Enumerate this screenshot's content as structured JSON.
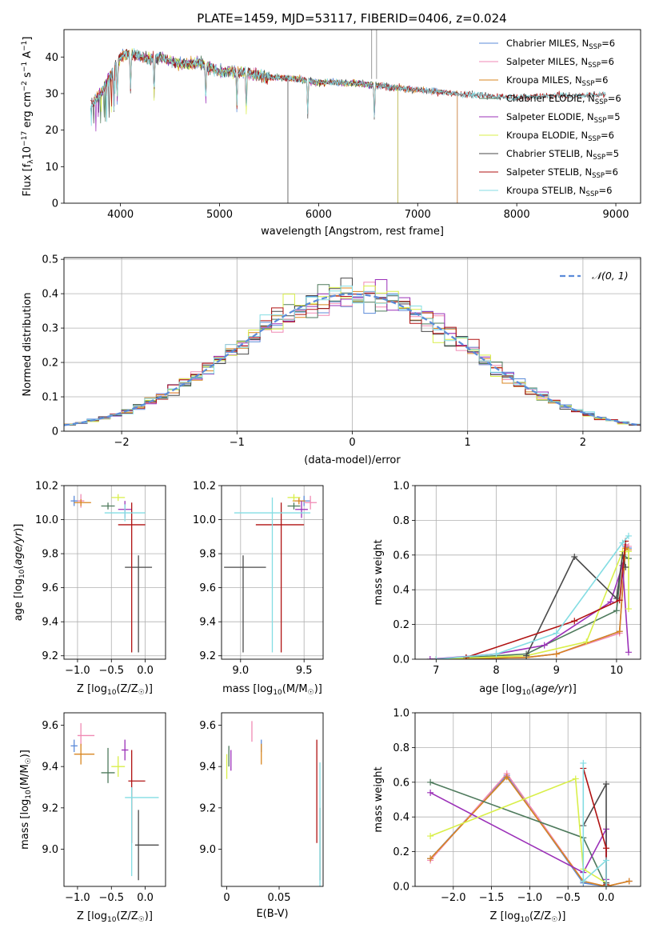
{
  "figure_title": "PLATE=1459, MJD=53117, FIBERID=0406, z=0.024",
  "colors": {
    "Chabrier MILES": "#5b8bd9",
    "Salpeter MILES": "#f08ab4",
    "Kroupa MILES": "#d8851f",
    "Chabrier ELODIE": "#4e7a5c",
    "Salpeter ELODIE": "#9b30b8",
    "Kroupa ELODIE": "#d9ef4a",
    "Chabrier STELIB": "#4a4a4a",
    "Salpeter STELIB": "#b01212",
    "Kroupa STELIB": "#84dde3"
  },
  "chart_data": [
    {
      "id": "spectrum",
      "type": "line",
      "title": "PLATE=1459, MJD=53117, FIBERID=0406, z=0.024",
      "xlabel": "wavelength [Angstrom, rest frame]",
      "ylabel_main": "Flux [f",
      "ylabel_sub": "λ",
      "ylabel_mid": "10",
      "ylabel_sup1": "−17",
      "ylabel_rest": " erg cm",
      "ylabel_sup2": "−2",
      "ylabel_rest2": " s",
      "ylabel_sup3": "−1",
      "ylabel_rest3": " A",
      "ylabel_sup4": "−1",
      "ylabel_end": "]",
      "xlim": [
        3430,
        9250
      ],
      "ylim": [
        0,
        47.5
      ],
      "xticks": [
        4000,
        5000,
        6000,
        7000,
        8000,
        9000
      ],
      "yticks": [
        0,
        10,
        20,
        30,
        40
      ],
      "legend_placement": "top-right",
      "series": [
        {
          "name": "Chabrier MILES",
          "nssp": "6"
        },
        {
          "name": "Salpeter MILES",
          "nssp": "6"
        },
        {
          "name": "Kroupa MILES",
          "nssp": "6"
        },
        {
          "name": "Chabrier ELODIE",
          "nssp": "6"
        },
        {
          "name": "Salpeter ELODIE",
          "nssp": "5"
        },
        {
          "name": "Kroupa ELODIE",
          "nssp": "6"
        },
        {
          "name": "Chabrier STELIB",
          "nssp": "5"
        },
        {
          "name": "Salpeter STELIB",
          "nssp": "6"
        },
        {
          "name": "Kroupa STELIB",
          "nssp": "6"
        }
      ],
      "continuum": {
        "x": [
          3700,
          3800,
          3900,
          4000,
          4100,
          4200,
          4300,
          4400,
          4600,
          4800,
          5000,
          5200,
          5500,
          5800,
          6000,
          6200,
          6500,
          6800,
          7000,
          7200,
          7400,
          7600,
          7800,
          8000,
          8200,
          8400,
          8600,
          8800
        ],
        "y": [
          27,
          30,
          35,
          40,
          41,
          40,
          39.5,
          40,
          38,
          38.5,
          36,
          36,
          34.5,
          34,
          33,
          33,
          32.5,
          31.5,
          31,
          30.5,
          30,
          29.5,
          29.2,
          29,
          29.2,
          29.5,
          29.3,
          29.8
        ]
      },
      "endpoints": {
        "MILES": 7400,
        "ELODIE": 6800,
        "STELIB": 8900
      }
    },
    {
      "id": "residuals",
      "type": "area",
      "xlabel": "(data-model)/error",
      "ylabel": "Normed distribution",
      "xlim": [
        -2.5,
        2.5
      ],
      "ylim": [
        0,
        0.505
      ],
      "xticks": [
        -2,
        -1,
        0,
        1,
        2
      ],
      "yticks": [
        0,
        0.1,
        0.2,
        0.3,
        0.4,
        0.5
      ],
      "grid": true,
      "legend_placement": "top-right",
      "legend_label": "𝒩(0, 1)",
      "bin_width": 0.1
    },
    {
      "id": "age-vs-Z",
      "type": "scatter",
      "xlabel": "Z [log",
      "xlabel_sub": "10",
      "xlabel_mid": "(Z/Z",
      "xlabel_sub2": "☉",
      "xlabel_end": ")]",
      "ylabel": "age  [log",
      "ylabel_sub": "10",
      "ylabel_end": "(age/yr)]",
      "xlim": [
        -1.2,
        0.3
      ],
      "ylim": [
        9.18,
        10.2
      ],
      "xticks": [
        -1.0,
        -0.5,
        0.0
      ],
      "yticks": [
        9.2,
        9.4,
        9.6,
        9.8,
        10.0,
        10.2
      ],
      "grid": true,
      "points": [
        {
          "series": "Chabrier MILES",
          "x": -1.05,
          "y": 10.11,
          "xerr": [
            0.05,
            0.05
          ],
          "yerr": [
            0.03,
            0.03
          ]
        },
        {
          "series": "Salpeter MILES",
          "x": -0.95,
          "y": 10.11,
          "xerr": [
            0.05,
            0.05
          ],
          "yerr": [
            0.04,
            0.04
          ]
        },
        {
          "series": "Kroupa MILES",
          "x": -0.95,
          "y": 10.1,
          "xerr": [
            0.1,
            0.15
          ],
          "yerr": [
            0.02,
            0.02
          ]
        },
        {
          "series": "Chabrier ELODIE",
          "x": -0.55,
          "y": 10.08,
          "xerr": [
            0.1,
            0.1
          ],
          "yerr": [
            0.02,
            0.02
          ]
        },
        {
          "series": "Salpeter ELODIE",
          "x": -0.3,
          "y": 10.06,
          "xerr": [
            0.1,
            0.1
          ],
          "yerr": [
            0.05,
            0.05
          ]
        },
        {
          "series": "Kroupa ELODIE",
          "x": -0.4,
          "y": 10.13,
          "xerr": [
            0.1,
            0.1
          ],
          "yerr": [
            0.02,
            0.02
          ]
        },
        {
          "series": "Chabrier STELIB",
          "x": -0.1,
          "y": 9.72,
          "xerr": [
            0.2,
            0.2
          ],
          "yerr": [
            0.5,
            0.07
          ]
        },
        {
          "series": "Salpeter STELIB",
          "x": -0.2,
          "y": 9.97,
          "xerr": [
            0.2,
            0.2
          ],
          "yerr": [
            0.75,
            0.13
          ]
        },
        {
          "series": "Kroupa STELIB",
          "x": -0.3,
          "y": 10.04,
          "xerr": [
            0.3,
            0.3
          ],
          "yerr": [
            0.05,
            0.05
          ]
        }
      ]
    },
    {
      "id": "age-vs-mass",
      "type": "scatter",
      "xlabel": "mass [log",
      "xlabel_sub": "10",
      "xlabel_mid": "(M/M",
      "xlabel_sub2": "☉",
      "xlabel_end": ")]",
      "xlim": [
        8.85,
        9.65
      ],
      "ylim": [
        9.18,
        10.2
      ],
      "xticks": [
        9.0,
        9.5
      ],
      "yticks": [
        9.2,
        9.4,
        9.6,
        9.8,
        10.0,
        10.2
      ],
      "grid": true,
      "points": [
        {
          "series": "Chabrier MILES",
          "x": 9.5,
          "y": 10.11,
          "xerr": [
            0.05,
            0.05
          ],
          "yerr": [
            0.03,
            0.03
          ]
        },
        {
          "series": "Salpeter MILES",
          "x": 9.55,
          "y": 10.1,
          "xerr": [
            0.05,
            0.05
          ],
          "yerr": [
            0.04,
            0.04
          ]
        },
        {
          "series": "Kroupa MILES",
          "x": 9.46,
          "y": 10.11,
          "xerr": [
            0.05,
            0.05
          ],
          "yerr": [
            0.02,
            0.02
          ]
        },
        {
          "series": "Chabrier ELODIE",
          "x": 9.42,
          "y": 10.08,
          "xerr": [
            0.05,
            0.05
          ],
          "yerr": [
            0.02,
            0.02
          ]
        },
        {
          "series": "Salpeter ELODIE",
          "x": 9.48,
          "y": 10.06,
          "xerr": [
            0.05,
            0.05
          ],
          "yerr": [
            0.05,
            0.05
          ]
        },
        {
          "series": "Kroupa ELODIE",
          "x": 9.42,
          "y": 10.13,
          "xerr": [
            0.05,
            0.05
          ],
          "yerr": [
            0.02,
            0.02
          ]
        },
        {
          "series": "Chabrier STELIB",
          "x": 9.02,
          "y": 9.72,
          "xerr": [
            0.15,
            0.18
          ],
          "yerr": [
            0.5,
            0.07
          ]
        },
        {
          "series": "Salpeter STELIB",
          "x": 9.32,
          "y": 9.97,
          "xerr": [
            0.2,
            0.18
          ],
          "yerr": [
            0.75,
            0.13
          ]
        },
        {
          "series": "Kroupa STELIB",
          "x": 9.25,
          "y": 10.04,
          "xerr": [
            0.3,
            0.3
          ],
          "yerr": [
            0.82,
            0.09
          ]
        }
      ]
    },
    {
      "id": "weight-vs-age",
      "type": "line",
      "xlabel": "age  [log",
      "xlabel_sub": "10",
      "xlabel_end": "(age/yr)]",
      "ylabel": "mass weight",
      "xlim": [
        6.65,
        10.4
      ],
      "ylim": [
        0,
        1.0
      ],
      "xticks": [
        7,
        8,
        9,
        10
      ],
      "yticks": [
        0.0,
        0.2,
        0.4,
        0.6,
        0.8,
        1.0
      ],
      "grid": true,
      "series": [
        {
          "name": "Chabrier MILES",
          "x": [
            7.0,
            8.5,
            9.0,
            10.05,
            10.15,
            10.2
          ],
          "y": [
            0.0,
            0.01,
            0.03,
            0.16,
            0.65,
            0.64
          ]
        },
        {
          "name": "Salpeter MILES",
          "x": [
            7.0,
            8.5,
            9.0,
            10.05,
            10.15,
            10.2
          ],
          "y": [
            0.0,
            0.01,
            0.03,
            0.15,
            0.66,
            0.65
          ]
        },
        {
          "name": "Kroupa MILES",
          "x": [
            7.0,
            8.5,
            9.0,
            10.05,
            10.15,
            10.2
          ],
          "y": [
            0.0,
            0.01,
            0.03,
            0.16,
            0.64,
            0.63
          ]
        },
        {
          "name": "Chabrier ELODIE",
          "x": [
            7.5,
            8.5,
            10.0,
            10.1,
            10.2
          ],
          "y": [
            0.01,
            0.03,
            0.28,
            0.6,
            0.58
          ]
        },
        {
          "name": "Salpeter ELODIE",
          "x": [
            6.9,
            8.0,
            8.8,
            9.9,
            10.1,
            10.2
          ],
          "y": [
            0.0,
            0.03,
            0.08,
            0.33,
            0.54,
            0.04
          ]
        },
        {
          "name": "Kroupa ELODIE",
          "x": [
            7.0,
            8.5,
            9.5,
            10.1,
            10.2,
            10.2
          ],
          "y": [
            0.0,
            0.02,
            0.1,
            0.62,
            0.62,
            0.29
          ]
        },
        {
          "name": "Chabrier STELIB",
          "x": [
            8.5,
            9.3,
            10.0,
            10.1,
            10.15
          ],
          "y": [
            0.02,
            0.59,
            0.35,
            0.6,
            0.53
          ]
        },
        {
          "name": "Salpeter STELIB",
          "x": [
            7.5,
            9.3,
            10.05,
            10.15
          ],
          "y": [
            0.01,
            0.22,
            0.34,
            0.68
          ]
        },
        {
          "name": "Kroupa STELIB",
          "x": [
            7.0,
            8.0,
            9.0,
            10.1,
            10.2
          ],
          "y": [
            0.0,
            0.03,
            0.15,
            0.67,
            0.71
          ]
        }
      ]
    },
    {
      "id": "mass-vs-Z",
      "type": "scatter",
      "xlabel": "Z [log",
      "xlabel_sub": "10",
      "xlabel_mid": "(Z/Z",
      "xlabel_sub2": "☉",
      "xlabel_end": ")]",
      "ylabel": "mass [log",
      "ylabel_sub": "10",
      "ylabel_mid": "(M/M",
      "ylabel_sub2": "☉",
      "ylabel_end": ")]",
      "xlim": [
        -1.2,
        0.3
      ],
      "ylim": [
        8.82,
        9.66
      ],
      "xticks": [
        -1.0,
        -0.5,
        0.0
      ],
      "yticks": [
        9.0,
        9.2,
        9.4,
        9.6
      ],
      "grid": false,
      "points": [
        {
          "series": "Chabrier MILES",
          "x": -1.05,
          "y": 9.5,
          "xerr": [
            0.05,
            0.05
          ],
          "yerr": [
            0.03,
            0.03
          ]
        },
        {
          "series": "Salpeter MILES",
          "x": -0.95,
          "y": 9.55,
          "xerr": [
            0.05,
            0.2
          ],
          "yerr": [
            0.05,
            0.06
          ]
        },
        {
          "series": "Kroupa MILES",
          "x": -0.95,
          "y": 9.46,
          "xerr": [
            0.1,
            0.2
          ],
          "yerr": [
            0.05,
            0.05
          ]
        },
        {
          "series": "Chabrier ELODIE",
          "x": -0.55,
          "y": 9.37,
          "xerr": [
            0.1,
            0.1
          ],
          "yerr": [
            0.05,
            0.12
          ]
        },
        {
          "series": "Salpeter ELODIE",
          "x": -0.3,
          "y": 9.48,
          "xerr": [
            0.05,
            0.05
          ],
          "yerr": [
            0.05,
            0.05
          ]
        },
        {
          "series": "Kroupa ELODIE",
          "x": -0.4,
          "y": 9.4,
          "xerr": [
            0.1,
            0.1
          ],
          "yerr": [
            0.05,
            0.05
          ]
        },
        {
          "series": "Chabrier STELIB",
          "x": -0.1,
          "y": 9.02,
          "xerr": [
            0.05,
            0.3
          ],
          "yerr": [
            0.17,
            0.17
          ]
        },
        {
          "series": "Salpeter STELIB",
          "x": -0.2,
          "y": 9.33,
          "xerr": [
            0.05,
            0.2
          ],
          "yerr": [
            0.3,
            0.15
          ]
        },
        {
          "series": "Kroupa STELIB",
          "x": -0.2,
          "y": 9.25,
          "xerr": [
            0.1,
            0.4
          ],
          "yerr": [
            0.38,
            0.05
          ]
        }
      ]
    },
    {
      "id": "mass-vs-ebv",
      "type": "scatter",
      "xlabel": "E(B-V)",
      "xlim": [
        -0.005,
        0.092
      ],
      "ylim": [
        8.82,
        9.66
      ],
      "xticks": [
        0.0,
        0.05
      ],
      "yticks": [
        9.0,
        9.2,
        9.4,
        9.6
      ],
      "grid": false,
      "points": [
        {
          "series": "Chabrier MILES",
          "x": 0.033,
          "y": 9.5,
          "yerr": [
            0.03,
            0.03
          ]
        },
        {
          "series": "Salpeter MILES",
          "x": 0.024,
          "y": 9.57,
          "yerr": [
            0.05,
            0.05
          ]
        },
        {
          "series": "Kroupa MILES",
          "x": 0.033,
          "y": 9.46,
          "yerr": [
            0.05,
            0.05
          ]
        },
        {
          "series": "Chabrier ELODIE",
          "x": 0.002,
          "y": 9.45,
          "yerr": [
            0.05,
            0.05
          ]
        },
        {
          "series": "Salpeter ELODIE",
          "x": 0.004,
          "y": 9.43,
          "yerr": [
            0.05,
            0.05
          ]
        },
        {
          "series": "Kroupa ELODIE",
          "x": 0.0,
          "y": 9.4,
          "yerr": [
            0.06,
            0.06
          ]
        },
        {
          "series": "Chabrier STELIB",
          "x": 0.089,
          "y": 9.1,
          "yerr": [
            0.25,
            0.1
          ]
        },
        {
          "series": "Salpeter STELIB",
          "x": 0.086,
          "y": 9.28,
          "yerr": [
            0.25,
            0.25
          ]
        },
        {
          "series": "Kroupa STELIB",
          "x": 0.089,
          "y": 9.12,
          "yerr": [
            0.3,
            0.3
          ]
        }
      ]
    },
    {
      "id": "weight-vs-Z",
      "type": "line",
      "xlabel": "Z [log",
      "xlabel_sub": "10",
      "xlabel_mid": "(Z/Z",
      "xlabel_sub2": "☉",
      "xlabel_end": ")]",
      "ylabel": "mass weight",
      "xlim": [
        -2.5,
        0.45
      ],
      "ylim": [
        0,
        1.0
      ],
      "xticks": [
        -2.0,
        -1.5,
        -1.0,
        -0.5,
        0.0
      ],
      "yticks": [
        0.0,
        0.2,
        0.4,
        0.6,
        0.8,
        1.0
      ],
      "grid": true,
      "series": [
        {
          "name": "Chabrier MILES",
          "x": [
            -2.3,
            -1.3,
            -0.3,
            0.0,
            0.3
          ],
          "y": [
            0.16,
            0.64,
            0.02,
            0.0,
            0.03
          ]
        },
        {
          "name": "Salpeter MILES",
          "x": [
            -2.3,
            -1.3,
            -0.3,
            0.0,
            0.3
          ],
          "y": [
            0.15,
            0.65,
            0.03,
            0.0,
            0.03
          ]
        },
        {
          "name": "Kroupa MILES",
          "x": [
            -2.3,
            -1.3,
            -0.3,
            0.0,
            0.3
          ],
          "y": [
            0.16,
            0.63,
            0.03,
            0.0,
            0.03
          ]
        },
        {
          "name": "Chabrier ELODIE",
          "x": [
            -2.3,
            -0.3,
            0.0
          ],
          "y": [
            0.6,
            0.28,
            0.0
          ]
        },
        {
          "name": "Salpeter ELODIE",
          "x": [
            -2.3,
            -0.3,
            0.0,
            0.0
          ],
          "y": [
            0.54,
            0.08,
            0.33,
            0.04
          ]
        },
        {
          "name": "Kroupa ELODIE",
          "x": [
            -2.3,
            -0.4,
            -0.3,
            0.0
          ],
          "y": [
            0.29,
            0.62,
            0.1,
            0.02
          ]
        },
        {
          "name": "Chabrier STELIB",
          "x": [
            -0.3,
            0.0,
            0.0
          ],
          "y": [
            0.35,
            0.59,
            0.02
          ]
        },
        {
          "name": "Salpeter STELIB",
          "x": [
            -0.3,
            0.0,
            0.0
          ],
          "y": [
            0.68,
            0.22,
            0.01
          ]
        },
        {
          "name": "Kroupa STELIB",
          "x": [
            -0.3,
            -0.3,
            0.0,
            0.0
          ],
          "y": [
            0.71,
            0.03,
            0.15,
            0.0
          ]
        }
      ]
    }
  ]
}
